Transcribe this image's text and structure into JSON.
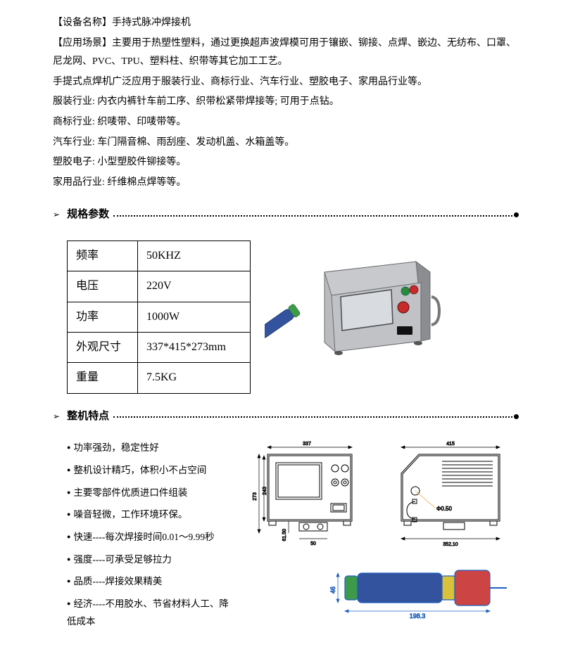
{
  "intro": {
    "l1": "【设备名称】手持式脉冲焊接机",
    "l2": "【应用场景】主要用于热塑性塑料，通过更换超声波焊模可用于镶嵌、铆接、点焊、嵌边、无纺布、口罩、尼龙网、PVC、TPU、塑料柱、织带等其它加工工艺。",
    "l3": "手提式点焊机广泛应用于服装行业、商标行业、汽车行业、塑胶电子、家用品行业等。",
    "l4": "服装行业: 内衣内裤针车前工序、织带松紧带焊接等; 可用于点钻。",
    "l5": "商标行业: 织唛带、印唛带等。",
    "l6": "汽车行业: 车门隔音棉、雨刮座、发动机盖、水箱盖等。",
    "l7": "塑胶电子: 小型塑胶件铆接等。",
    "l8": "家用品行业: 纤维棉点焊等等。"
  },
  "sections": {
    "spec": "规格参数",
    "features": "整机特点"
  },
  "spec_table": {
    "rows": [
      [
        "频率",
        "50KHZ"
      ],
      [
        "电压",
        "220V"
      ],
      [
        "功率",
        "1000W"
      ],
      [
        "外观尺寸",
        "337*415*273mm"
      ],
      [
        "重量",
        "7.5KG"
      ]
    ]
  },
  "features": {
    "f1": "功率强劲，稳定性好",
    "f2": "整机设计精巧，体积小不占空间",
    "f3": "主要零部件优质进口件组装",
    "f4": "噪音轻微，工作环境环保。",
    "f5": "快速----每次焊接时间0.01～9.99秒",
    "f6": "强度----可承受足够拉力",
    "f7": "品质----焊接效果精美",
    "f8": "经济----不用胶水、节省材料人工、降低成本"
  },
  "dims": {
    "d337": "337",
    "d273": "273",
    "d243": "243",
    "d50": "50",
    "d615": "61.50",
    "d415": "415",
    "d3521": "352.10",
    "d505": "Φ0.50",
    "d1983": "198.3",
    "d46": "46"
  },
  "colors": {
    "machine_body": "#b9bbbe",
    "machine_dark": "#8b8d90",
    "screen": "#d8dce0",
    "btn_red": "#c92a2a",
    "btn_green": "#2b8a3e",
    "tool_blue": "#33539e",
    "tool_green": "#3d9a4a",
    "tool_pink": "#d989c4",
    "tool_yellow": "#d9c23a",
    "tool_red": "#c44",
    "dim_blue": "#2060c0"
  }
}
